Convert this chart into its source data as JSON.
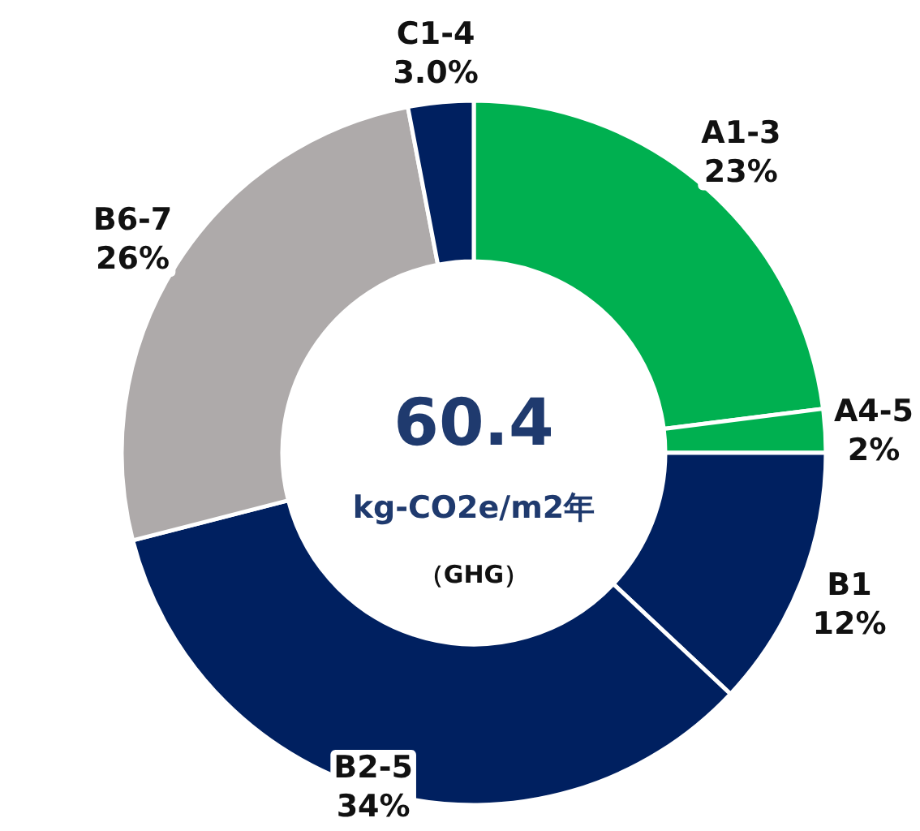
{
  "chart_data": {
    "type": "donut",
    "categories": [
      "A1-3",
      "A4-5",
      "B1",
      "B2-5",
      "B6-7",
      "C1-4"
    ],
    "values": [
      23,
      2,
      12,
      34,
      26,
      3.0
    ],
    "value_labels": [
      "23%",
      "2%",
      "12%",
      "34%",
      "26%",
      "3.0%"
    ],
    "colors": [
      "#00b050",
      "#00b050",
      "#002060",
      "#002060",
      "#aeaaaa",
      "#002060"
    ],
    "annotations": [
      "60.4",
      "kg-CO2e/m2年",
      "（GHG）"
    ],
    "legend": false
  }
}
